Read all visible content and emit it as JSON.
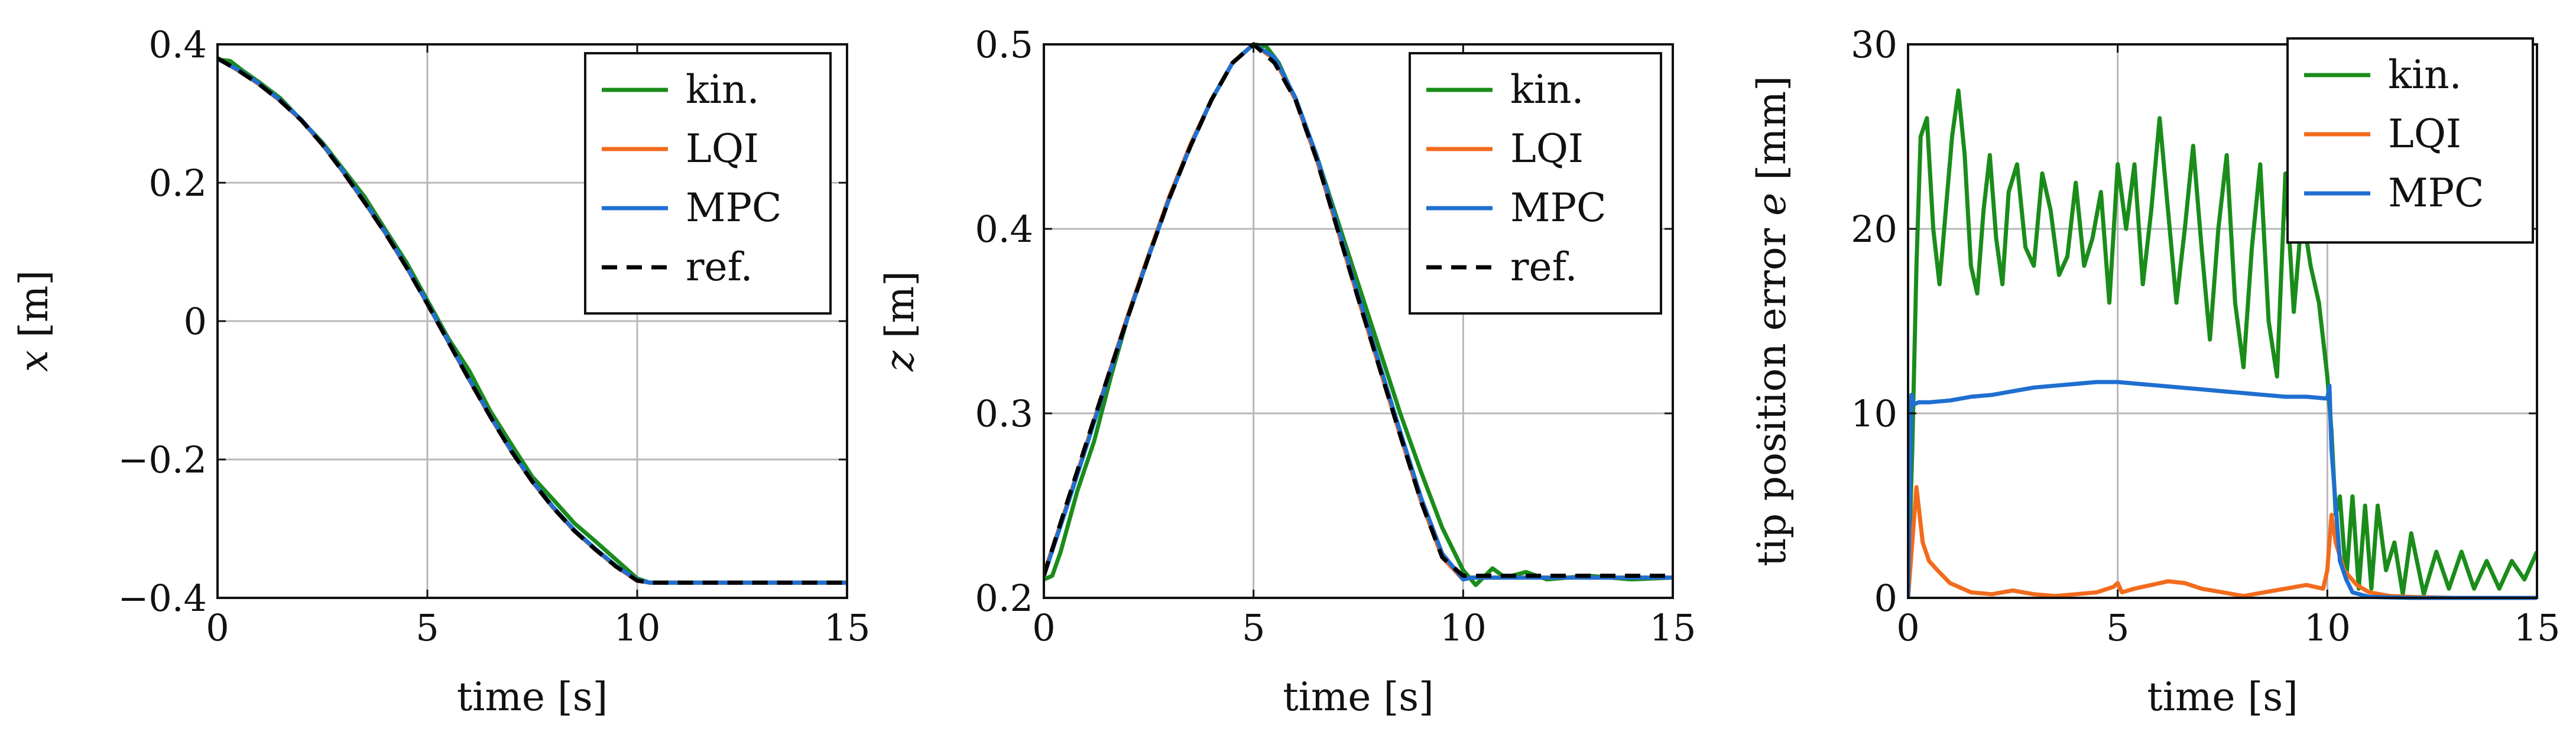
{
  "colors": {
    "kin": "#1a8c1a",
    "lqi": "#f26b1d",
    "mpc": "#1f6fd1",
    "ref": "#000000"
  },
  "chart_data": [
    {
      "type": "line",
      "xlabel": "time [s]",
      "ylabel": "x [m]",
      "ylabel_var": "x",
      "ylabel_unit": " [m]",
      "xlim": [
        0,
        15
      ],
      "ylim": [
        -0.4,
        0.4
      ],
      "xticks": [
        0,
        5,
        10,
        15
      ],
      "xtick_labels": [
        "0",
        "5",
        "10",
        "15"
      ],
      "yticks": [
        -0.4,
        -0.2,
        0,
        0.2,
        0.4
      ],
      "ytick_labels": [
        "−0.4",
        "−0.2",
        "0",
        "0.2",
        "0.4"
      ],
      "legend": [
        "kin.",
        "LQI",
        "MPC",
        "ref."
      ],
      "legend_position": "top-right",
      "series": [
        {
          "name": "kin.",
          "color": "#1a8c1a",
          "style": "solid",
          "x": [
            0,
            0.3,
            0.6,
            1,
            1.5,
            2,
            2.5,
            3,
            3.5,
            4,
            4.5,
            5,
            5.5,
            6,
            6.5,
            7,
            7.5,
            8,
            8.5,
            9,
            9.5,
            10,
            10.3,
            15
          ],
          "y": [
            0.378,
            0.376,
            0.362,
            0.345,
            0.322,
            0.29,
            0.258,
            0.219,
            0.18,
            0.132,
            0.085,
            0.03,
            -0.025,
            -0.072,
            -0.13,
            -0.178,
            -0.225,
            -0.258,
            -0.292,
            -0.318,
            -0.345,
            -0.372,
            -0.378,
            -0.378
          ]
        },
        {
          "name": "LQI",
          "color": "#f26b1d",
          "style": "solid",
          "x": [
            0,
            0.5,
            1,
            1.5,
            2,
            2.5,
            3,
            3.5,
            4,
            4.5,
            5,
            5.5,
            6,
            6.5,
            7,
            7.5,
            8,
            8.5,
            9,
            9.5,
            10,
            10.3,
            15
          ],
          "y": [
            0.38,
            0.362,
            0.342,
            0.318,
            0.29,
            0.255,
            0.215,
            0.172,
            0.127,
            0.078,
            0.025,
            -0.03,
            -0.085,
            -0.138,
            -0.188,
            -0.232,
            -0.27,
            -0.303,
            -0.33,
            -0.355,
            -0.375,
            -0.378,
            -0.378
          ]
        },
        {
          "name": "MPC",
          "color": "#1f6fd1",
          "style": "solid",
          "x": [
            0,
            0.5,
            1,
            1.5,
            2,
            2.5,
            3,
            3.5,
            4,
            4.5,
            5,
            5.5,
            6,
            6.5,
            7,
            7.5,
            8,
            8.5,
            9,
            9.5,
            10,
            10.3,
            15
          ],
          "y": [
            0.379,
            0.363,
            0.343,
            0.319,
            0.291,
            0.256,
            0.216,
            0.173,
            0.128,
            0.079,
            0.026,
            -0.029,
            -0.084,
            -0.137,
            -0.187,
            -0.231,
            -0.269,
            -0.302,
            -0.329,
            -0.354,
            -0.374,
            -0.378,
            -0.378
          ]
        },
        {
          "name": "ref.",
          "color": "#000000",
          "style": "dashed",
          "x": [
            0,
            0.5,
            1,
            1.5,
            2,
            2.5,
            3,
            3.5,
            4,
            4.5,
            5,
            5.5,
            6,
            6.5,
            7,
            7.5,
            8,
            8.5,
            9,
            9.5,
            10,
            10.3,
            15
          ],
          "y": [
            0.38,
            0.362,
            0.342,
            0.318,
            0.29,
            0.255,
            0.215,
            0.172,
            0.127,
            0.078,
            0.025,
            -0.03,
            -0.085,
            -0.138,
            -0.188,
            -0.232,
            -0.27,
            -0.303,
            -0.33,
            -0.355,
            -0.375,
            -0.378,
            -0.378
          ]
        }
      ]
    },
    {
      "type": "line",
      "xlabel": "time [s]",
      "ylabel": "z [m]",
      "ylabel_var": "z",
      "ylabel_unit": " [m]",
      "xlim": [
        0,
        15
      ],
      "ylim": [
        0.2,
        0.5
      ],
      "xticks": [
        0,
        5,
        10,
        15
      ],
      "xtick_labels": [
        "0",
        "5",
        "10",
        "15"
      ],
      "yticks": [
        0.2,
        0.3,
        0.4,
        0.5
      ],
      "ytick_labels": [
        "0.2",
        "0.3",
        "0.4",
        "0.5"
      ],
      "legend": [
        "kin.",
        "LQI",
        "MPC",
        "ref."
      ],
      "legend_position": "top-right",
      "series": [
        {
          "name": "kin.",
          "color": "#1a8c1a",
          "style": "solid",
          "x": [
            0,
            0.2,
            0.4,
            0.8,
            1.2,
            1.6,
            2,
            2.5,
            3,
            3.5,
            4,
            4.5,
            5,
            5.3,
            5.6,
            6,
            6.5,
            7,
            7.5,
            8,
            8.5,
            9,
            9.5,
            10,
            10.3,
            10.7,
            11,
            11.5,
            12,
            13,
            14,
            15
          ],
          "y": [
            0.21,
            0.212,
            0.225,
            0.258,
            0.285,
            0.32,
            0.352,
            0.385,
            0.418,
            0.445,
            0.47,
            0.49,
            0.5,
            0.499,
            0.49,
            0.47,
            0.44,
            0.405,
            0.37,
            0.335,
            0.3,
            0.268,
            0.238,
            0.215,
            0.207,
            0.216,
            0.211,
            0.214,
            0.21,
            0.212,
            0.21,
            0.211
          ]
        },
        {
          "name": "LQI",
          "color": "#f26b1d",
          "style": "solid",
          "x": [
            0,
            0.5,
            1,
            1.5,
            2,
            2.5,
            3,
            3.5,
            4,
            4.5,
            5,
            5.5,
            6,
            6.5,
            7,
            7.5,
            8,
            8.5,
            9,
            9.5,
            10,
            10.2,
            15
          ],
          "y": [
            0.213,
            0.247,
            0.282,
            0.318,
            0.353,
            0.386,
            0.418,
            0.446,
            0.47,
            0.49,
            0.5,
            0.492,
            0.47,
            0.438,
            0.4,
            0.362,
            0.325,
            0.288,
            0.252,
            0.222,
            0.21,
            0.211,
            0.211
          ]
        },
        {
          "name": "MPC",
          "color": "#1f6fd1",
          "style": "solid",
          "x": [
            0,
            0.5,
            1,
            1.5,
            2,
            2.5,
            3,
            3.5,
            4,
            4.5,
            5,
            5.5,
            6,
            6.5,
            7,
            7.5,
            8,
            8.5,
            9,
            9.5,
            10,
            10.2,
            15
          ],
          "y": [
            0.212,
            0.246,
            0.281,
            0.317,
            0.352,
            0.385,
            0.417,
            0.445,
            0.47,
            0.49,
            0.5,
            0.493,
            0.471,
            0.44,
            0.402,
            0.364,
            0.327,
            0.29,
            0.254,
            0.224,
            0.21,
            0.211,
            0.211
          ]
        },
        {
          "name": "ref.",
          "color": "#000000",
          "style": "dashed",
          "x": [
            0,
            0.5,
            1,
            1.5,
            2,
            2.5,
            3,
            3.5,
            4,
            4.5,
            5,
            5.5,
            6,
            6.5,
            7,
            7.5,
            8,
            8.5,
            9,
            9.5,
            10,
            15
          ],
          "y": [
            0.212,
            0.248,
            0.283,
            0.318,
            0.352,
            0.385,
            0.417,
            0.445,
            0.47,
            0.49,
            0.5,
            0.49,
            0.47,
            0.438,
            0.4,
            0.362,
            0.325,
            0.288,
            0.252,
            0.222,
            0.212,
            0.212
          ]
        }
      ]
    },
    {
      "type": "line",
      "xlabel": "time [s]",
      "ylabel": "tip position error e [mm]",
      "ylabel_var": "e",
      "ylabel_pre": "tip position error ",
      "ylabel_unit": " [mm]",
      "xlim": [
        0,
        15
      ],
      "ylim": [
        0,
        30
      ],
      "xticks": [
        0,
        5,
        10,
        15
      ],
      "xtick_labels": [
        "0",
        "5",
        "10",
        "15"
      ],
      "yticks": [
        0,
        10,
        20,
        30
      ],
      "ytick_labels": [
        "0",
        "10",
        "20",
        "30"
      ],
      "legend": [
        "kin.",
        "LQI",
        "MPC"
      ],
      "legend_position": "top-right",
      "series": [
        {
          "name": "kin.",
          "color": "#1a8c1a",
          "style": "solid",
          "x": [
            0,
            0.1,
            0.2,
            0.3,
            0.45,
            0.6,
            0.75,
            0.9,
            1.05,
            1.2,
            1.35,
            1.5,
            1.65,
            1.8,
            1.95,
            2.1,
            2.25,
            2.4,
            2.6,
            2.8,
            3.0,
            3.2,
            3.4,
            3.6,
            3.8,
            4.0,
            4.2,
            4.4,
            4.6,
            4.8,
            5.0,
            5.2,
            5.4,
            5.6,
            5.8,
            6.0,
            6.2,
            6.4,
            6.6,
            6.8,
            7.0,
            7.2,
            7.4,
            7.6,
            7.8,
            8.0,
            8.2,
            8.4,
            8.6,
            8.8,
            9.0,
            9.2,
            9.4,
            9.6,
            9.8,
            10.0,
            10.1,
            10.2,
            10.3,
            10.45,
            10.6,
            10.75,
            10.9,
            11.05,
            11.2,
            11.4,
            11.6,
            11.8,
            12.0,
            12.3,
            12.6,
            12.9,
            13.2,
            13.5,
            13.8,
            14.1,
            14.4,
            14.7,
            15.0
          ],
          "y": [
            0.5,
            8,
            18,
            25,
            26,
            20,
            17,
            21,
            25,
            27.5,
            24,
            18,
            16.5,
            21,
            24,
            19.5,
            17,
            22,
            23.5,
            19,
            18,
            23,
            21,
            17.5,
            18.5,
            22.5,
            18,
            19.5,
            22,
            16,
            23.5,
            20,
            23.5,
            17,
            21,
            26,
            21,
            16,
            20,
            24.5,
            19,
            14,
            20,
            24,
            16,
            12.5,
            19,
            23.5,
            15,
            12,
            23,
            15.5,
            21,
            18,
            16,
            12,
            9,
            4.5,
            5.5,
            1,
            5.5,
            0.5,
            5,
            0.5,
            5,
            1.5,
            3,
            0.2,
            3.5,
            0.2,
            2.5,
            0.5,
            2.5,
            0.5,
            2,
            0.5,
            2,
            1,
            2.5
          ]
        },
        {
          "name": "LQI",
          "color": "#f26b1d",
          "style": "solid",
          "x": [
            0,
            0.1,
            0.2,
            0.35,
            0.5,
            0.7,
            1,
            1.5,
            2,
            2.5,
            3,
            3.5,
            4,
            4.5,
            4.9,
            5.0,
            5.1,
            5.4,
            5.8,
            6.2,
            6.6,
            7,
            7.5,
            8,
            8.5,
            9,
            9.5,
            9.9,
            10.0,
            10.1,
            10.2,
            10.4,
            10.7,
            11,
            11.5,
            12,
            13,
            15
          ],
          "y": [
            0,
            3,
            6,
            3,
            2,
            1.5,
            0.8,
            0.3,
            0.2,
            0.4,
            0.2,
            0.1,
            0.2,
            0.3,
            0.6,
            0.8,
            0.3,
            0.5,
            0.7,
            0.9,
            0.8,
            0.5,
            0.3,
            0.1,
            0.3,
            0.5,
            0.7,
            0.5,
            1.5,
            4.5,
            3,
            1.5,
            0.7,
            0.3,
            0.1,
            0.05,
            0,
            0
          ]
        },
        {
          "name": "MPC",
          "color": "#1f6fd1",
          "style": "solid",
          "x": [
            0,
            0.08,
            0.15,
            0.25,
            0.5,
            1,
            1.5,
            2,
            2.5,
            3,
            3.5,
            4,
            4.5,
            5,
            5.5,
            6,
            6.5,
            7,
            7.5,
            8,
            8.5,
            9,
            9.5,
            10,
            10.05,
            10.1,
            10.2,
            10.3,
            10.45,
            10.6,
            11,
            12,
            13,
            15
          ],
          "y": [
            0,
            11,
            10.5,
            10.6,
            10.6,
            10.7,
            10.9,
            11.0,
            11.2,
            11.4,
            11.5,
            11.6,
            11.7,
            11.7,
            11.6,
            11.5,
            11.4,
            11.3,
            11.2,
            11.1,
            11.0,
            10.9,
            10.9,
            10.8,
            11.5,
            8,
            5,
            2,
            1,
            0.3,
            0.05,
            0,
            0,
            0
          ]
        }
      ]
    }
  ]
}
